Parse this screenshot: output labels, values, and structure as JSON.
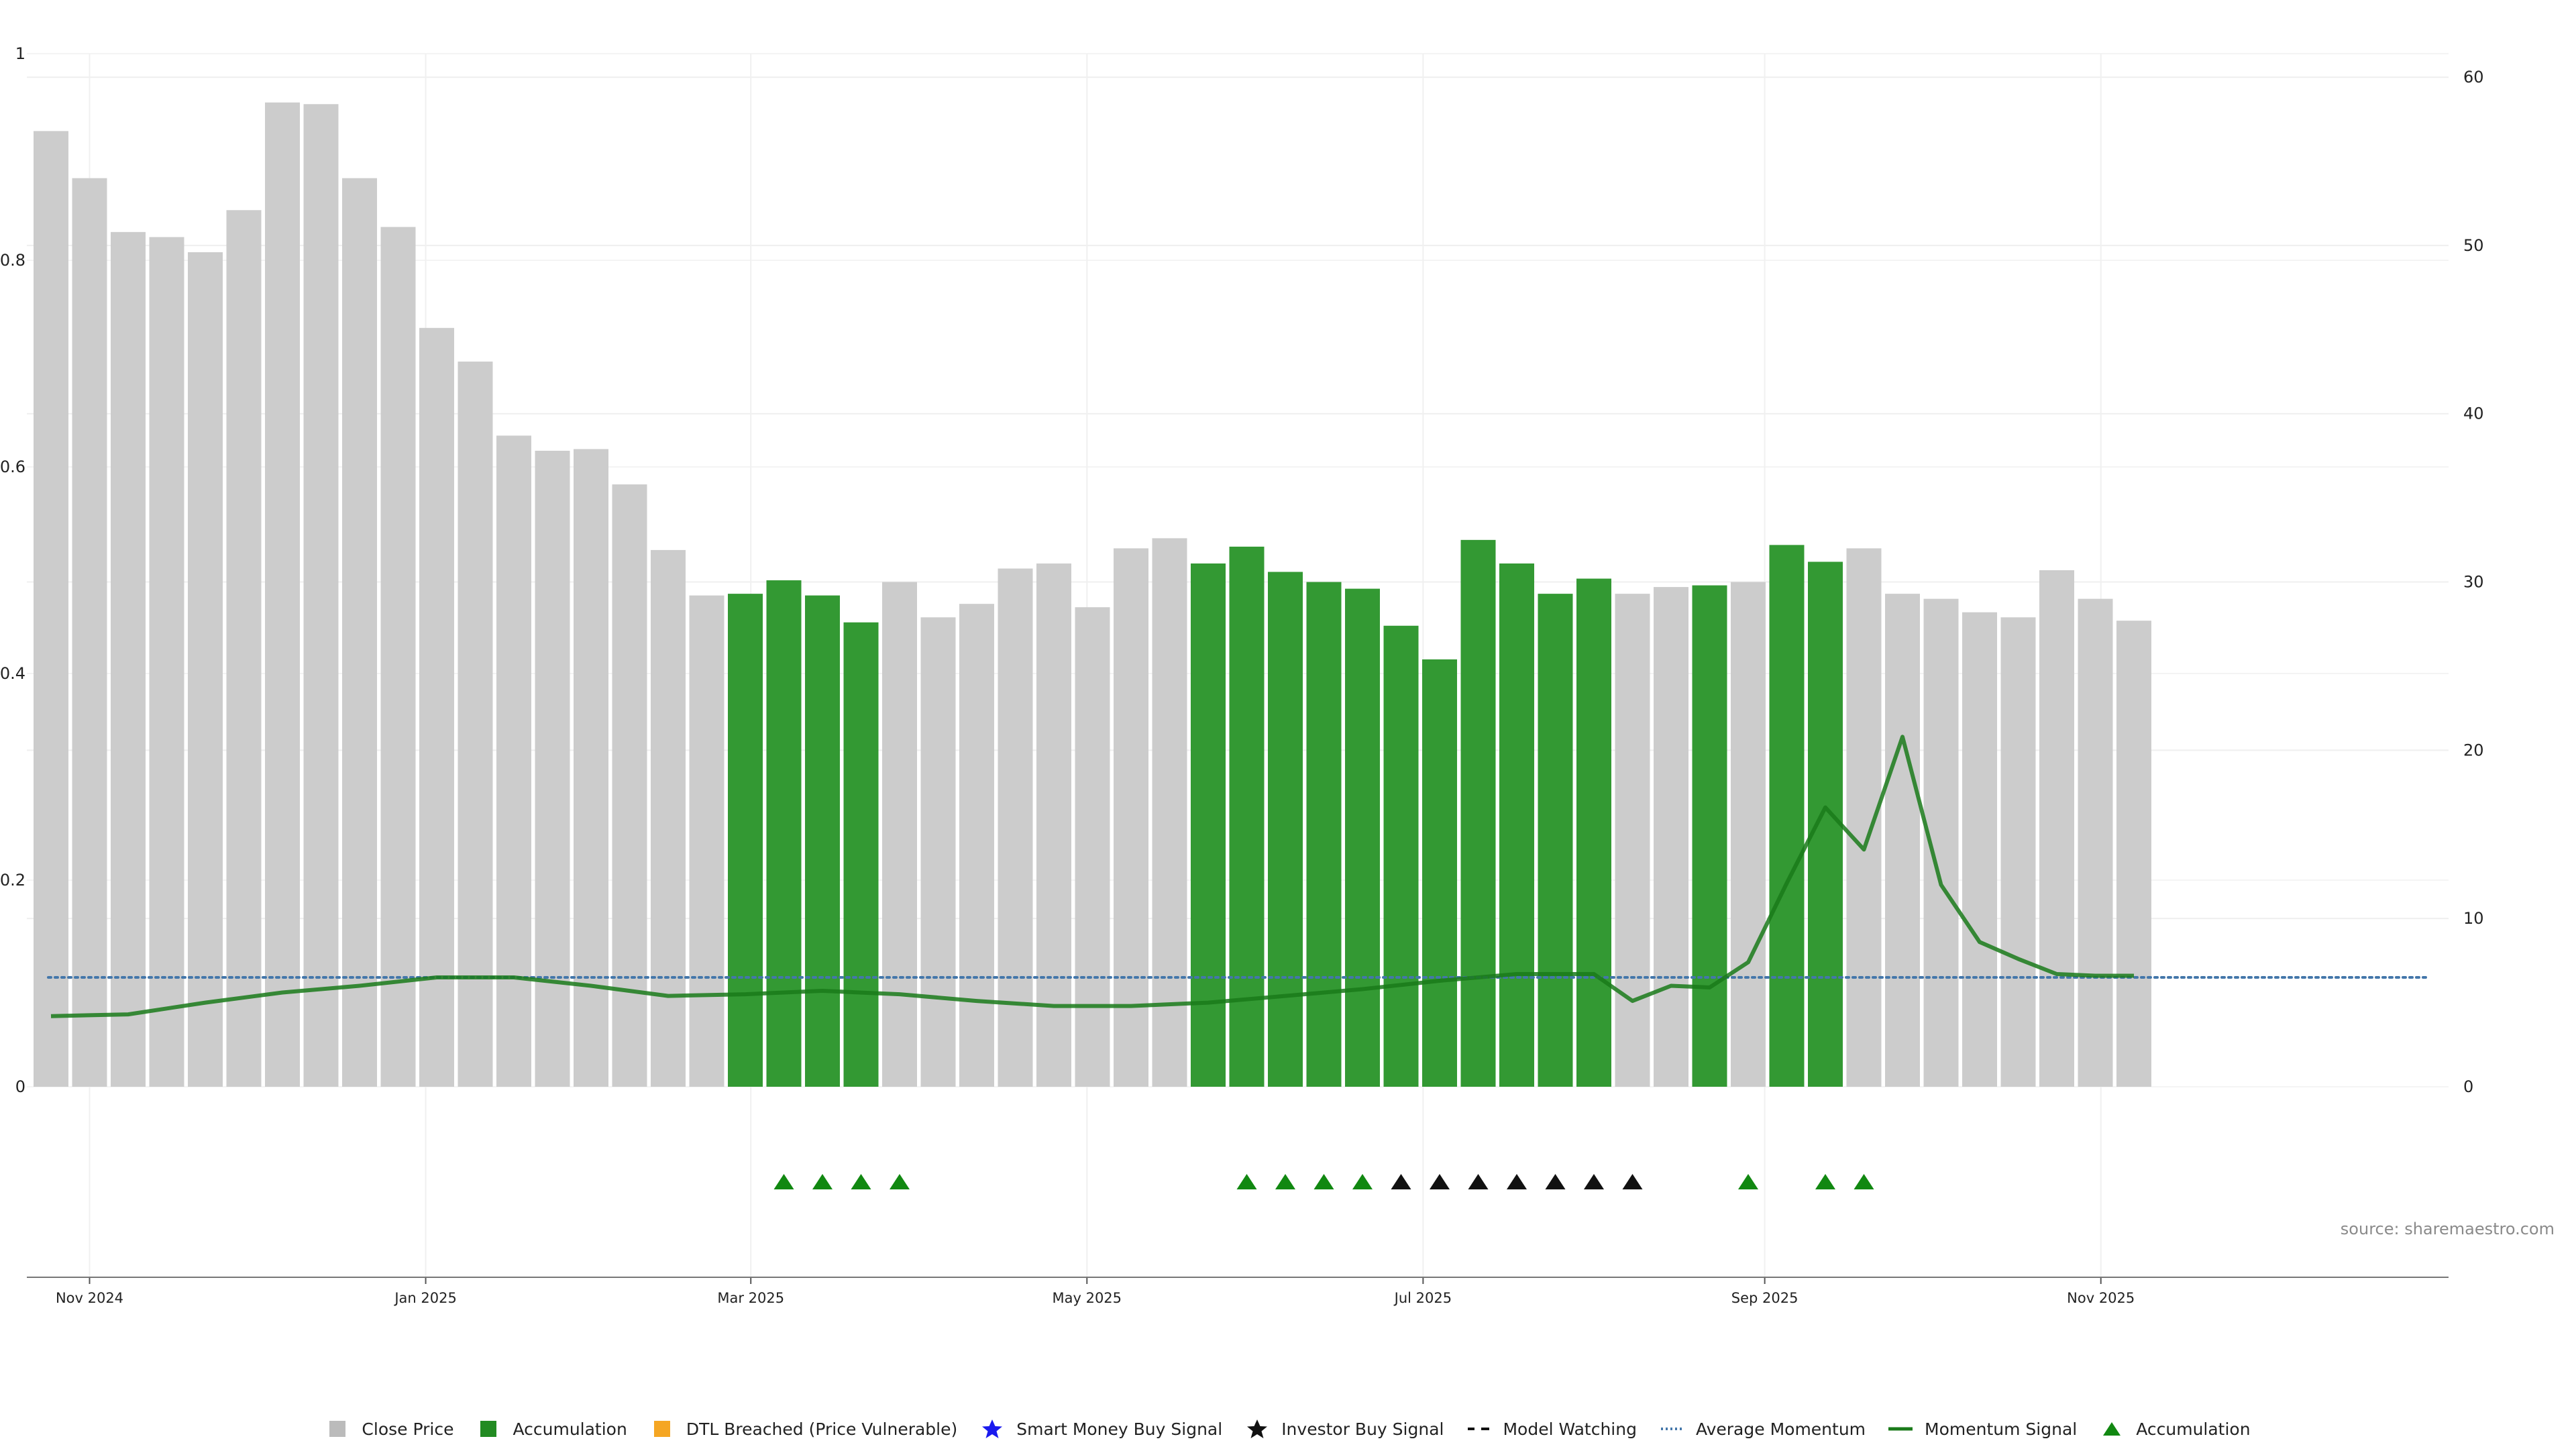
{
  "chart_data": {
    "type": "bar",
    "title": "",
    "xlabel": "",
    "ylabel": "",
    "left_axis": {
      "ylim": [
        0,
        1
      ],
      "ticks": [
        0,
        0.2,
        0.4,
        0.6,
        0.8,
        1
      ],
      "tick_labels": [
        "0",
        "0.2",
        "0.4",
        "0.6",
        "0.8",
        "1"
      ]
    },
    "right_axis": {
      "ylim": [
        0,
        61.4
      ],
      "ticks": [
        0,
        10,
        20,
        30,
        40,
        50,
        60
      ],
      "tick_labels": [
        "0",
        "10",
        "20",
        "30",
        "40",
        "50",
        "60"
      ]
    },
    "x_axis": {
      "start_date": "2024-10-25",
      "ticks": [
        {
          "date": "2024-11-01",
          "label": "Nov 2024"
        },
        {
          "date": "2025-01-01",
          "label": "Jan 2025"
        },
        {
          "date": "2025-03-01",
          "label": "Mar 2025"
        },
        {
          "date": "2025-05-01",
          "label": "May 2025"
        },
        {
          "date": "2025-07-01",
          "label": "Jul 2025"
        },
        {
          "date": "2025-09-01",
          "label": "Sep 2025"
        },
        {
          "date": "2025-11-01",
          "label": "Nov 2025"
        }
      ]
    },
    "grid": true,
    "series": [
      {
        "name": "Close Price",
        "type": "bar",
        "color": "#cccccc",
        "accumulation_color": "#339933",
        "dates": [
          "2024-10-25",
          "2024-11-01",
          "2024-11-08",
          "2024-11-15",
          "2024-11-22",
          "2024-11-29",
          "2024-12-06",
          "2024-12-13",
          "2024-12-20",
          "2024-12-27",
          "2025-01-03",
          "2025-01-10",
          "2025-01-17",
          "2025-01-24",
          "2025-01-31",
          "2025-02-07",
          "2025-02-14",
          "2025-02-21",
          "2025-02-28",
          "2025-03-07",
          "2025-03-14",
          "2025-03-21",
          "2025-03-28",
          "2025-04-04",
          "2025-04-11",
          "2025-04-18",
          "2025-04-25",
          "2025-05-02",
          "2025-05-09",
          "2025-05-16",
          "2025-05-23",
          "2025-05-30",
          "2025-06-06",
          "2025-06-13",
          "2025-06-20",
          "2025-06-27",
          "2025-07-04",
          "2025-07-11",
          "2025-07-18",
          "2025-07-25",
          "2025-08-01",
          "2025-08-08",
          "2025-08-15",
          "2025-08-22",
          "2025-08-29",
          "2025-09-05",
          "2025-09-12",
          "2025-09-19",
          "2025-09-26",
          "2025-10-03",
          "2025-10-10",
          "2025-10-17",
          "2025-10-24",
          "2025-10-31",
          "2025-11-07"
        ],
        "values": [
          56.8,
          54.0,
          50.8,
          50.5,
          49.6,
          52.1,
          58.5,
          58.4,
          54.0,
          51.1,
          45.1,
          43.1,
          38.7,
          37.8,
          37.9,
          35.8,
          31.9,
          29.2,
          29.3,
          30.1,
          29.2,
          27.6,
          30.0,
          27.9,
          28.7,
          30.8,
          31.1,
          28.5,
          32.0,
          32.6,
          31.1,
          32.1,
          30.6,
          30.0,
          29.6,
          27.4,
          25.4,
          32.5,
          31.1,
          29.3,
          30.2,
          29.3,
          29.7,
          29.8,
          30.0,
          32.2,
          31.2,
          32.0,
          29.3,
          29.0,
          28.2,
          27.9,
          30.7,
          29.0,
          27.7
        ],
        "accumulation": [
          false,
          false,
          false,
          false,
          false,
          false,
          false,
          false,
          false,
          false,
          false,
          false,
          false,
          false,
          false,
          false,
          false,
          false,
          true,
          true,
          true,
          true,
          false,
          false,
          false,
          false,
          false,
          false,
          false,
          false,
          true,
          true,
          true,
          true,
          true,
          true,
          true,
          true,
          true,
          true,
          true,
          false,
          false,
          true,
          false,
          true,
          true,
          false,
          false,
          false,
          false,
          false,
          false,
          false,
          false
        ]
      },
      {
        "name": "Momentum Signal",
        "type": "line",
        "color": "#1a7a1a",
        "dates": [
          "2024-10-25",
          "2024-11-08",
          "2024-11-22",
          "2024-12-06",
          "2024-12-20",
          "2025-01-03",
          "2025-01-17",
          "2025-01-31",
          "2025-02-14",
          "2025-02-28",
          "2025-03-14",
          "2025-03-28",
          "2025-04-11",
          "2025-04-25",
          "2025-05-09",
          "2025-05-23",
          "2025-06-06",
          "2025-06-20",
          "2025-07-04",
          "2025-07-18",
          "2025-08-01",
          "2025-08-08",
          "2025-08-15",
          "2025-08-22",
          "2025-08-29",
          "2025-09-05",
          "2025-09-12",
          "2025-09-19",
          "2025-09-26",
          "2025-10-03",
          "2025-10-10",
          "2025-10-17",
          "2025-10-24",
          "2025-10-31",
          "2025-11-07"
        ],
        "values": [
          4.2,
          4.3,
          5.0,
          5.6,
          6.0,
          6.5,
          6.5,
          6.0,
          5.4,
          5.5,
          5.7,
          5.5,
          5.1,
          4.8,
          4.8,
          5.0,
          5.4,
          5.8,
          6.3,
          6.7,
          6.7,
          5.1,
          6.0,
          5.9,
          7.4,
          12.1,
          16.6,
          14.1,
          20.8,
          12.0,
          8.6,
          7.6,
          6.7,
          6.6,
          6.6
        ]
      },
      {
        "name": "Average Momentum",
        "type": "line",
        "color": "#4477aa",
        "style": "dotted",
        "value": 6.5
      }
    ],
    "signals": [
      {
        "date": "2025-03-07",
        "type": "Accumulation",
        "color": "#118811"
      },
      {
        "date": "2025-03-14",
        "type": "Accumulation",
        "color": "#118811"
      },
      {
        "date": "2025-03-21",
        "type": "Accumulation",
        "color": "#118811"
      },
      {
        "date": "2025-03-28",
        "type": "Accumulation",
        "color": "#118811"
      },
      {
        "date": "2025-05-30",
        "type": "Accumulation",
        "color": "#118811"
      },
      {
        "date": "2025-06-06",
        "type": "Accumulation",
        "color": "#118811"
      },
      {
        "date": "2025-06-13",
        "type": "Accumulation",
        "color": "#118811"
      },
      {
        "date": "2025-06-20",
        "type": "Accumulation",
        "color": "#118811"
      },
      {
        "date": "2025-06-27",
        "type": "Investor Watch",
        "color": "#111111"
      },
      {
        "date": "2025-07-04",
        "type": "Investor Watch",
        "color": "#111111"
      },
      {
        "date": "2025-07-11",
        "type": "Investor Watch",
        "color": "#111111"
      },
      {
        "date": "2025-07-18",
        "type": "Investor Watch",
        "color": "#111111"
      },
      {
        "date": "2025-07-25",
        "type": "Investor Watch",
        "color": "#111111"
      },
      {
        "date": "2025-08-01",
        "type": "Investor Watch",
        "color": "#111111"
      },
      {
        "date": "2025-08-08",
        "type": "Investor Watch",
        "color": "#111111"
      },
      {
        "date": "2025-08-29",
        "type": "Accumulation",
        "color": "#118811"
      },
      {
        "date": "2025-09-12",
        "type": "Accumulation",
        "color": "#118811"
      },
      {
        "date": "2025-09-19",
        "type": "Accumulation",
        "color": "#118811"
      }
    ],
    "annotation": "source: sharemaestro.com",
    "legend": {
      "placement": "bottom-center",
      "items": [
        {
          "label": "Close Price",
          "marker": "square",
          "color": "#bbbbbb"
        },
        {
          "label": "Accumulation",
          "marker": "square",
          "color": "#228b22"
        },
        {
          "label": "DTL Breached (Price Vulnerable)",
          "marker": "square",
          "color": "#f5a623"
        },
        {
          "label": "Smart Money Buy Signal",
          "marker": "star",
          "color": "#1a1aee"
        },
        {
          "label": "Investor Buy Signal",
          "marker": "star",
          "color": "#111111"
        },
        {
          "label": "Model Watching",
          "marker": "dash",
          "color": "#111111"
        },
        {
          "label": "Average Momentum",
          "marker": "dotted",
          "color": "#4477aa"
        },
        {
          "label": "Momentum Signal",
          "marker": "line",
          "color": "#1a7a1a"
        },
        {
          "label": "Accumulation",
          "marker": "triangle",
          "color": "#118811"
        }
      ]
    }
  }
}
